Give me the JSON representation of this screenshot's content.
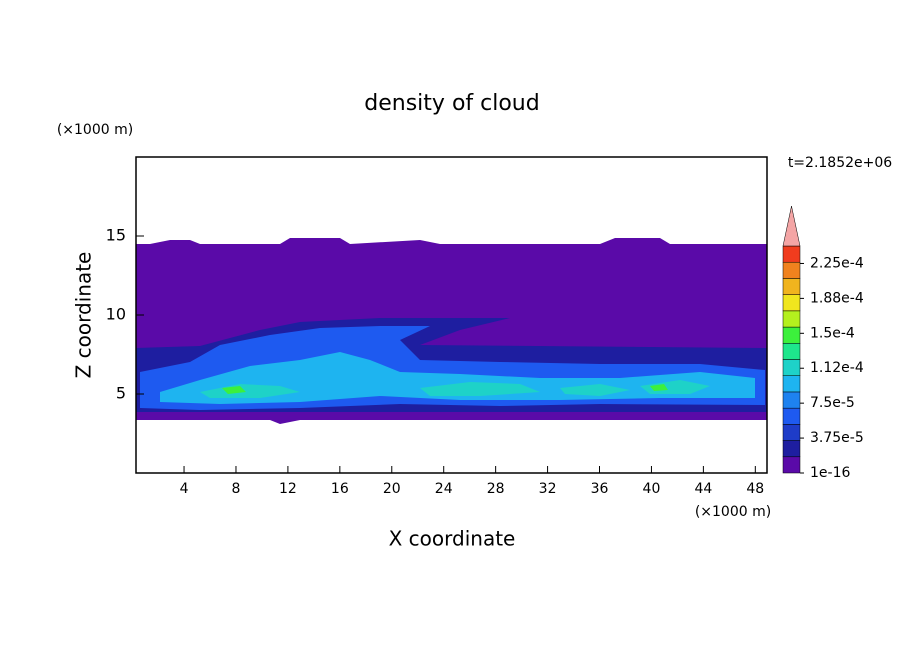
{
  "chart_data": {
    "type": "contour",
    "title": "density of cloud",
    "x_label": "X coordinate",
    "y_label": "Z coordinate",
    "x_unit": "(×1000 m)",
    "y_unit": "(×1000 m)",
    "time_label": "t=2.1852e+06",
    "xlim": [
      0.3,
      48.9
    ],
    "ylim": [
      0,
      20
    ],
    "xticks": [
      4,
      8,
      12,
      16,
      20,
      24,
      28,
      32,
      36,
      40,
      44,
      48
    ],
    "yticks": [
      5,
      10,
      15
    ],
    "colorbar": {
      "clim": [
        1e-16,
        0.00024375
      ],
      "ticks": [
        {
          "value": 1e-16,
          "label": "1e-16"
        },
        {
          "value": 3.75e-05,
          "label": "3.75e-5"
        },
        {
          "value": 7.5e-05,
          "label": "7.5e-5"
        },
        {
          "value": 0.0001125,
          "label": "1.12e-4"
        },
        {
          "value": 0.00015,
          "label": "1.5e-4"
        },
        {
          "value": 0.0001875,
          "label": "1.88e-4"
        },
        {
          "value": 0.000225,
          "label": "2.25e-4"
        }
      ],
      "colors": [
        "#5a0aa8",
        "#1e1ea0",
        "#1e3cc8",
        "#1e5af0",
        "#1e82f0",
        "#1eb4f0",
        "#1ed2c8",
        "#1ee68c",
        "#3cf03c",
        "#b4f01e",
        "#f0e61e",
        "#f0b41e",
        "#f0821e",
        "#f03c1e"
      ],
      "extend_color": "#f4a5a5"
    }
  }
}
